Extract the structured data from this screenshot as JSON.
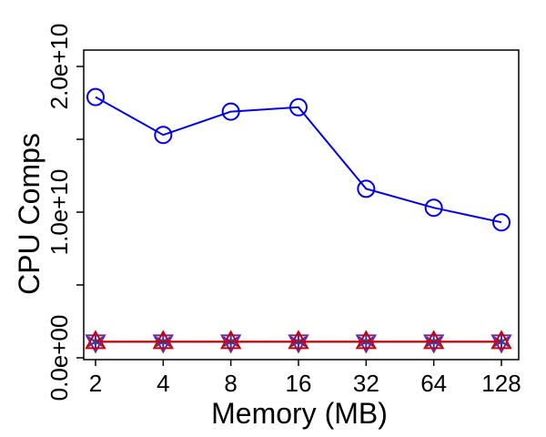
{
  "chart_data": {
    "type": "line",
    "title": "",
    "xlabel": "Memory (MB)",
    "ylabel": "CPU Comps",
    "categories": [
      "2",
      "4",
      "8",
      "16",
      "32",
      "64",
      "128"
    ],
    "x_scale": "log2",
    "ylim": [
      0,
      20000000000
    ],
    "yticks": [
      0,
      5000000000,
      10000000000,
      15000000000,
      20000000000
    ],
    "ytick_labels": [
      "0.0e+00",
      "",
      "1.0e+10",
      "",
      "2.0e+10"
    ],
    "grid": false,
    "series": [
      {
        "values": [
          17900000000,
          15300000000,
          16900000000,
          17200000000,
          11600000000,
          10300000000,
          9300000000
        ],
        "color": "#0000ee",
        "marker": "circle"
      },
      {
        "values": [
          1100000000,
          1100000000,
          1100000000,
          1100000000,
          1100000000,
          1100000000,
          1100000000
        ],
        "color": "#cc0000",
        "marker": "triangle-up"
      },
      {
        "values": [
          1100000000,
          1100000000,
          1100000000,
          1100000000,
          1100000000,
          1100000000,
          1100000000
        ],
        "color": "#7a1fa2",
        "marker": "triangle-down"
      },
      {
        "values": [
          1100000000,
          1100000000,
          1100000000,
          1100000000,
          1100000000,
          1100000000,
          1100000000
        ],
        "color": "#1f3fbf",
        "marker": "star"
      },
      {
        "values": [
          1100000000,
          1100000000,
          1100000000,
          1100000000,
          1100000000,
          1100000000,
          1100000000
        ],
        "color": "#b8a000",
        "marker": "dot"
      }
    ]
  }
}
